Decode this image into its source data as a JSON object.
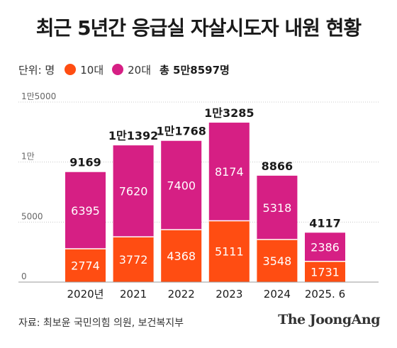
{
  "title": "최근 5년간 응급실 자살시도자 내원 현황",
  "legend": {
    "unit": "단위: 명",
    "total": "총 5만8597명"
  },
  "source": "자료: 최보윤 국민의힘 의원, 보건복지부",
  "brand": "The JoongAng",
  "colors": {
    "teens": "#ff4d12",
    "twenties": "#d61f84",
    "axis": "#9a9a9a"
  },
  "chart_data": {
    "type": "bar",
    "stacked": true,
    "categories": [
      "2020년",
      "2021",
      "2022",
      "2023",
      "2024",
      "2025. 6"
    ],
    "series": [
      {
        "name": "10대",
        "values": [
          2774,
          3772,
          4368,
          5111,
          3548,
          1731
        ]
      },
      {
        "name": "20대",
        "values": [
          6395,
          7620,
          7400,
          8174,
          5318,
          2386
        ]
      }
    ],
    "totals": [
      "9169",
      "1만1392",
      "1만1768",
      "1만3285",
      "8866",
      "4117"
    ],
    "y_ticks": [
      {
        "value": 0,
        "label": "0"
      },
      {
        "value": 5000,
        "label": "5000"
      },
      {
        "value": 10000,
        "label": "1만"
      },
      {
        "value": 15000,
        "label": "1만5000"
      }
    ],
    "ylim": [
      0,
      15000
    ],
    "legend_position": "top-left"
  }
}
